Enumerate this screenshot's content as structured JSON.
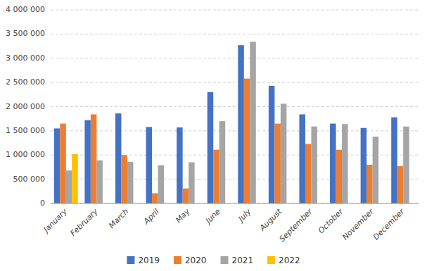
{
  "chart_data": {
    "type": "bar",
    "categories": [
      "January",
      "February",
      "March",
      "April",
      "May",
      "June",
      "July",
      "August",
      "September",
      "October",
      "November",
      "December"
    ],
    "series": [
      {
        "name": "2019",
        "color": "#4472C4",
        "values": [
          1550000,
          1720000,
          1860000,
          1580000,
          1570000,
          2300000,
          3270000,
          2430000,
          1840000,
          1650000,
          1560000,
          1780000
        ]
      },
      {
        "name": "2020",
        "color": "#ED7D31",
        "values": [
          1650000,
          1840000,
          1000000,
          210000,
          310000,
          1110000,
          2580000,
          1650000,
          1230000,
          1110000,
          800000,
          770000
        ]
      },
      {
        "name": "2021",
        "color": "#A5A5A5",
        "values": [
          680000,
          890000,
          860000,
          790000,
          850000,
          1700000,
          3340000,
          2060000,
          1590000,
          1640000,
          1380000,
          1590000
        ]
      },
      {
        "name": "2022",
        "color": "#FFC000",
        "values": [
          1020000,
          0,
          0,
          0,
          0,
          0,
          0,
          0,
          0,
          0,
          0,
          0
        ]
      }
    ],
    "ylim": [
      0,
      4000000
    ],
    "yticks": [
      0,
      {
        "value": 500000,
        "label": "500 000"
      },
      {
        "value": 1000000,
        "label": "1 000 000"
      },
      {
        "value": 1500000,
        "label": "1 500 000"
      },
      {
        "value": 2000000,
        "label": "2 000 000"
      },
      {
        "value": 2500000,
        "label": "2 500 000"
      },
      {
        "value": 3000000,
        "label": "3 000 000"
      },
      {
        "value": 3500000,
        "label": "3 500 000"
      },
      {
        "value": 4000000,
        "label": "4 000 000"
      }
    ],
    "grid": true,
    "legend": "bottom"
  }
}
